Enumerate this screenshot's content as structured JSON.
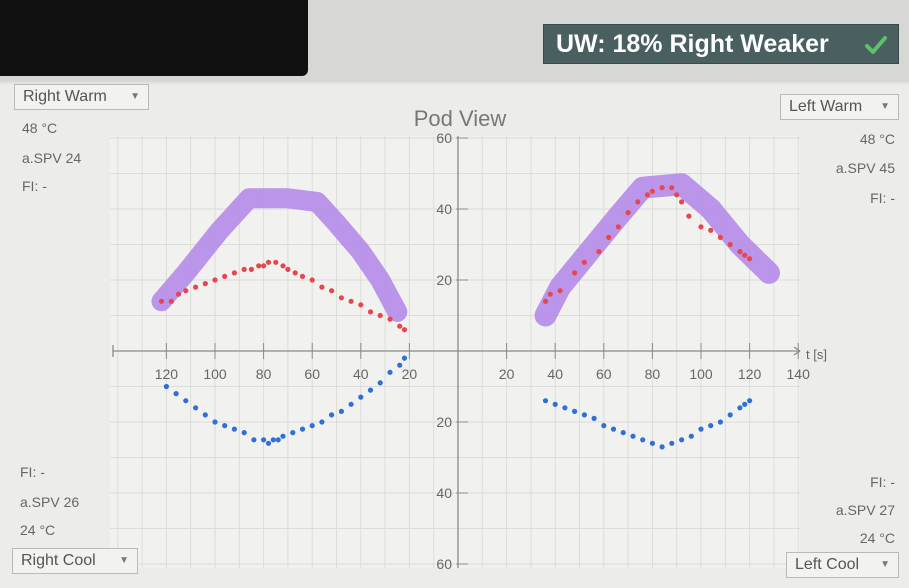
{
  "uw_banner": {
    "text": "UW: 18% Right Weaker",
    "status_icon": "check-icon",
    "accent": "#5cc36a"
  },
  "right_warm": {
    "dropdown": "Right Warm",
    "temp": "48 °C",
    "aspv": "a.SPV 24",
    "fi": "FI: -"
  },
  "left_warm": {
    "dropdown": "Left Warm",
    "temp": "48 °C",
    "aspv": "a.SPV 45",
    "fi": "FI: -"
  },
  "right_cool": {
    "dropdown": "Right Cool",
    "temp": "24 °C",
    "aspv": "a.SPV 26",
    "fi": "FI: -"
  },
  "left_cool": {
    "dropdown": "Left Cool",
    "temp": "24 °C",
    "aspv": "a.SPV 27",
    "fi": "FI: -"
  },
  "chart_data": {
    "type": "scatter",
    "title": "Pod View",
    "x_unit_label": "t [s]",
    "x_ticks_left": [
      "120",
      "100",
      "80",
      "60",
      "40",
      "20"
    ],
    "x_ticks_right": [
      "20",
      "40",
      "60",
      "80",
      "100",
      "120",
      "140"
    ],
    "y_ticks_up": [
      "20",
      "40",
      "60"
    ],
    "y_ticks_down": [
      "20",
      "40",
      "60"
    ],
    "xlim_each_side": [
      0,
      140
    ],
    "ylim_each_side": [
      0,
      60
    ],
    "grid": true,
    "colors": {
      "warm_points": "#e8464f",
      "cool_points": "#2f6fd6",
      "hand_band": "#b58be8"
    },
    "series": [
      {
        "side": "right",
        "kind": "warm",
        "x": [
          122,
          118,
          115,
          112,
          108,
          104,
          100,
          96,
          92,
          88,
          85,
          82,
          80,
          78,
          75,
          72,
          70,
          67,
          64,
          60,
          56,
          52,
          48,
          44,
          40,
          36,
          32,
          28,
          24,
          22
        ],
        "y": [
          14,
          14,
          16,
          17,
          18,
          19,
          20,
          21,
          22,
          23,
          23,
          24,
          24,
          25,
          25,
          24,
          23,
          22,
          21,
          20,
          18,
          17,
          15,
          14,
          13,
          11,
          10,
          9,
          7,
          6
        ]
      },
      {
        "side": "right",
        "kind": "cool",
        "x": [
          120,
          116,
          112,
          108,
          104,
          100,
          96,
          92,
          88,
          84,
          80,
          78,
          76,
          74,
          72,
          68,
          64,
          60,
          56,
          52,
          48,
          44,
          40,
          36,
          32,
          28,
          24,
          22
        ],
        "y": [
          -10,
          -12,
          -14,
          -16,
          -18,
          -20,
          -21,
          -22,
          -23,
          -25,
          -25,
          -26,
          -25,
          -25,
          -24,
          -23,
          -22,
          -21,
          -20,
          -18,
          -17,
          -15,
          -13,
          -11,
          -9,
          -6,
          -4,
          -2
        ]
      },
      {
        "side": "left",
        "kind": "warm",
        "x": [
          36,
          38,
          42,
          48,
          52,
          58,
          62,
          66,
          70,
          74,
          78,
          80,
          84,
          88,
          90,
          92,
          95,
          100,
          104,
          108,
          112,
          116,
          118,
          120
        ],
        "y": [
          14,
          16,
          17,
          22,
          25,
          28,
          32,
          35,
          39,
          42,
          44,
          45,
          46,
          46,
          44,
          42,
          38,
          35,
          34,
          32,
          30,
          28,
          27,
          26
        ]
      },
      {
        "side": "left",
        "kind": "cool",
        "x": [
          36,
          40,
          44,
          48,
          52,
          56,
          60,
          64,
          68,
          72,
          76,
          80,
          84,
          88,
          92,
          96,
          100,
          104,
          108,
          112,
          116,
          118,
          120
        ],
        "y": [
          -14,
          -15,
          -16,
          -17,
          -18,
          -19,
          -21,
          -22,
          -23,
          -24,
          -25,
          -26,
          -27,
          -26,
          -25,
          -24,
          -22,
          -21,
          -20,
          -18,
          -16,
          -15,
          -14
        ]
      }
    ]
  }
}
